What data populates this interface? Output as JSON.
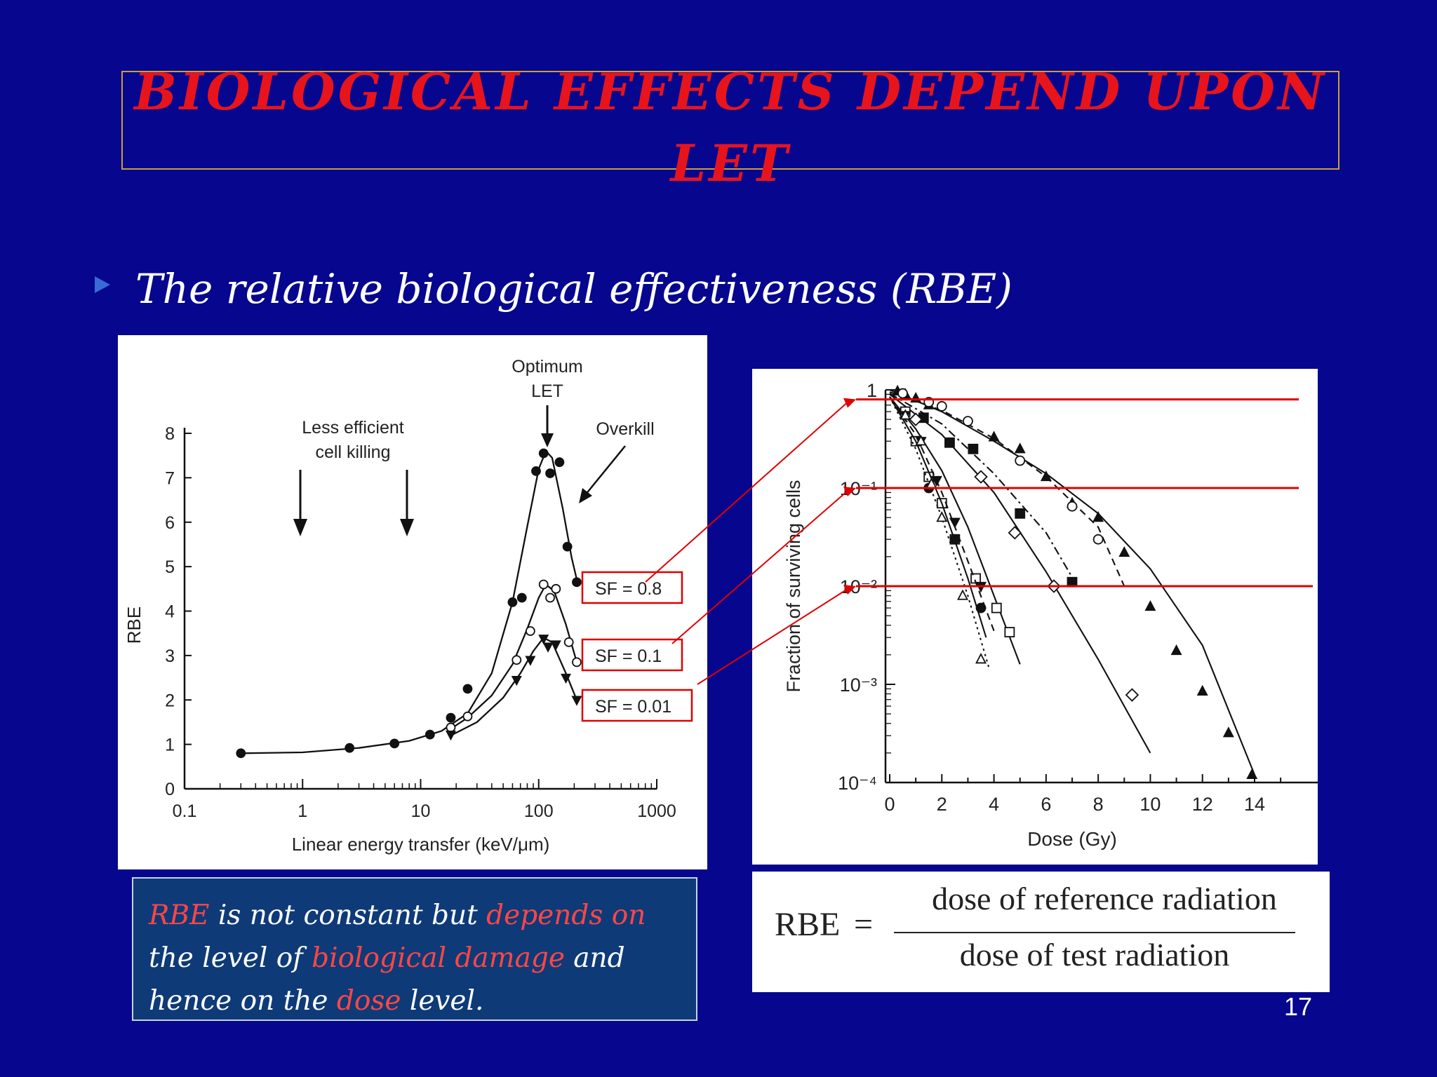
{
  "slide": {
    "title": "BIOLOGICAL EFFECTS DEPEND UPON LET",
    "bullet": "The relative biological effectiveness (RBE)",
    "slide_number": "17",
    "colors": {
      "background": "#06068f",
      "title": "#e8141c",
      "highlight": "#ff4646",
      "guide_lines": "#e00000"
    }
  },
  "note": {
    "segments": [
      {
        "text": "RBE",
        "highlight": true
      },
      {
        "text": " is not constant but ",
        "highlight": false
      },
      {
        "text": "depends on",
        "highlight": true
      },
      {
        "text": " the level of ",
        "highlight": false
      },
      {
        "text": "biological damage",
        "highlight": true
      },
      {
        "text": " and hence on the ",
        "highlight": false
      },
      {
        "text": "dose",
        "highlight": true
      },
      {
        "text": " level.",
        "highlight": false
      }
    ]
  },
  "formula": {
    "lhs": "RBE",
    "equals": "=",
    "numerator": "dose of reference radiation",
    "denominator": "dose of test radiation"
  },
  "chart_data": [
    {
      "type": "line",
      "xlabel": "Linear energy transfer (keV/μm)",
      "ylabel": "RBE",
      "x_scale": "log",
      "xlim": [
        0.1,
        1000
      ],
      "ylim": [
        0,
        8
      ],
      "x_ticks": [
        "0.1",
        "1",
        "10",
        "100",
        "1000"
      ],
      "y_ticks": [
        "0",
        "1",
        "2",
        "3",
        "4",
        "5",
        "6",
        "7",
        "8"
      ],
      "annotations": [
        {
          "text": "Optimum",
          "text2": "LET"
        },
        {
          "text": "Less efficient",
          "text2": "cell killing"
        },
        {
          "text": "Overkill"
        }
      ],
      "series": [
        {
          "name": "SF = 0.8",
          "marker": "filled-circle",
          "curve": [
            [
              0.3,
              0.8
            ],
            [
              1,
              0.82
            ],
            [
              3,
              0.92
            ],
            [
              8,
              1.08
            ],
            [
              15,
              1.3
            ],
            [
              25,
              1.7
            ],
            [
              40,
              2.6
            ],
            [
              60,
              4.2
            ],
            [
              80,
              5.9
            ],
            [
              100,
              7.2
            ],
            [
              115,
              7.6
            ],
            [
              130,
              7.45
            ],
            [
              160,
              6.3
            ],
            [
              190,
              5.2
            ],
            [
              215,
              4.6
            ]
          ],
          "points": [
            [
              0.3,
              0.8
            ],
            [
              2.5,
              0.92
            ],
            [
              6,
              1.02
            ],
            [
              12,
              1.22
            ],
            [
              18,
              1.6
            ],
            [
              25,
              2.25
            ],
            [
              60,
              4.2
            ],
            [
              72,
              4.3
            ],
            [
              95,
              7.15
            ],
            [
              110,
              7.55
            ],
            [
              125,
              7.1
            ],
            [
              150,
              7.35
            ],
            [
              175,
              5.45
            ],
            [
              210,
              4.65
            ]
          ]
        },
        {
          "name": "SF = 0.1",
          "marker": "open-circle",
          "curve": [
            [
              18,
              1.35
            ],
            [
              25,
              1.6
            ],
            [
              40,
              2.1
            ],
            [
              60,
              2.8
            ],
            [
              80,
              3.6
            ],
            [
              100,
              4.3
            ],
            [
              115,
              4.6
            ],
            [
              135,
              4.45
            ],
            [
              170,
              3.7
            ],
            [
              210,
              2.85
            ]
          ],
          "points": [
            [
              18,
              1.38
            ],
            [
              25,
              1.63
            ],
            [
              65,
              2.9
            ],
            [
              85,
              3.55
            ],
            [
              110,
              4.6
            ],
            [
              125,
              4.3
            ],
            [
              140,
              4.5
            ],
            [
              180,
              3.3
            ],
            [
              210,
              2.85
            ]
          ]
        },
        {
          "name": "SF = 0.01",
          "marker": "filled-triangle-down",
          "curve": [
            [
              18,
              1.2
            ],
            [
              30,
              1.5
            ],
            [
              50,
              2.05
            ],
            [
              70,
              2.6
            ],
            [
              90,
              3.1
            ],
            [
              110,
              3.4
            ],
            [
              130,
              3.3
            ],
            [
              170,
              2.6
            ],
            [
              210,
              2.0
            ]
          ],
          "points": [
            [
              18,
              1.22
            ],
            [
              65,
              2.45
            ],
            [
              85,
              2.9
            ],
            [
              110,
              3.38
            ],
            [
              120,
              3.2
            ],
            [
              140,
              3.25
            ],
            [
              170,
              2.5
            ],
            [
              210,
              2.0
            ]
          ]
        }
      ],
      "labels": [
        "SF = 0.8",
        "SF = 0.1",
        "SF = 0.01"
      ]
    },
    {
      "type": "scatter",
      "xlabel": "Dose (Gy)",
      "ylabel": "Fraction of surviving cells",
      "y_scale": "log",
      "xlim": [
        0,
        15
      ],
      "ylim": [
        0.0001,
        1
      ],
      "x_ticks": [
        "0",
        "2",
        "4",
        "6",
        "8",
        "10",
        "12",
        "14"
      ],
      "y_ticks": [
        "1",
        "10⁻¹",
        "10⁻²",
        "10⁻³",
        "10⁻⁴"
      ],
      "reference_lines_sf": [
        0.8,
        0.1,
        0.01
      ],
      "series": [
        {
          "marker": "filled-triangle",
          "style": "solid",
          "curve": [
            [
              0,
              1
            ],
            [
              2,
              0.6
            ],
            [
              4,
              0.3
            ],
            [
              6,
              0.14
            ],
            [
              8,
              0.055
            ],
            [
              10,
              0.015
            ],
            [
              12,
              0.0025
            ],
            [
              14,
              0.00012
            ]
          ],
          "points": [
            [
              0.3,
              0.97
            ],
            [
              0.6,
              0.9
            ],
            [
              1,
              0.82
            ],
            [
              1.5,
              0.7
            ],
            [
              4,
              0.33
            ],
            [
              5,
              0.25
            ],
            [
              6,
              0.13
            ],
            [
              7,
              0.07
            ],
            [
              8,
              0.05
            ],
            [
              9,
              0.022
            ],
            [
              10,
              0.0062
            ],
            [
              11,
              0.0022
            ],
            [
              12,
              0.00085
            ],
            [
              13,
              0.00032
            ],
            [
              13.9,
              0.00012
            ]
          ]
        },
        {
          "marker": "open-circle",
          "style": "dashed",
          "curve": [
            [
              0,
              0.95
            ],
            [
              2,
              0.62
            ],
            [
              4,
              0.32
            ],
            [
              6,
              0.13
            ],
            [
              8,
              0.04
            ],
            [
              9,
              0.01
            ]
          ],
          "points": [
            [
              0.5,
              0.92
            ],
            [
              1.5,
              0.75
            ],
            [
              2,
              0.68
            ],
            [
              3,
              0.48
            ],
            [
              5,
              0.19
            ],
            [
              7,
              0.065
            ],
            [
              8,
              0.03
            ]
          ]
        },
        {
          "marker": "filled-square",
          "style": "dash-dot",
          "curve": [
            [
              0,
              0.92
            ],
            [
              2,
              0.45
            ],
            [
              4,
              0.14
            ],
            [
              6,
              0.035
            ],
            [
              7.2,
              0.01
            ]
          ],
          "points": [
            [
              1.3,
              0.52
            ],
            [
              2.3,
              0.29
            ],
            [
              3.2,
              0.25
            ],
            [
              5,
              0.055
            ],
            [
              7,
              0.011
            ]
          ]
        },
        {
          "marker": "open-diamond",
          "style": "solid",
          "curve": [
            [
              0,
              0.9
            ],
            [
              2,
              0.35
            ],
            [
              4,
              0.09
            ],
            [
              6,
              0.014
            ],
            [
              8,
              0.0018
            ],
            [
              10,
              0.0002
            ]
          ],
          "points": [
            [
              1,
              0.5
            ],
            [
              3.5,
              0.13
            ],
            [
              4.8,
              0.035
            ],
            [
              6.3,
              0.01
            ],
            [
              9.3,
              0.00078
            ]
          ]
        },
        {
          "marker": "open-square",
          "style": "solid",
          "curve": [
            [
              0,
              0.85
            ],
            [
              1,
              0.4
            ],
            [
              2,
              0.15
            ],
            [
              3,
              0.04
            ],
            [
              4,
              0.008
            ],
            [
              5,
              0.0016
            ]
          ],
          "points": [
            [
              0.6,
              0.6
            ],
            [
              1,
              0.3
            ],
            [
              1.5,
              0.13
            ],
            [
              2,
              0.07
            ],
            [
              2.5,
              0.03
            ],
            [
              3.3,
              0.012
            ],
            [
              4.1,
              0.006
            ],
            [
              4.6,
              0.0034
            ]
          ]
        },
        {
          "marker": "filled-triangle-down",
          "style": "dashed",
          "curve": [
            [
              0,
              0.85
            ],
            [
              1,
              0.35
            ],
            [
              2,
              0.09
            ],
            [
              3,
              0.018
            ],
            [
              4,
              0.0035
            ]
          ],
          "points": [
            [
              0.6,
              0.55
            ],
            [
              1.2,
              0.3
            ],
            [
              1.8,
              0.12
            ],
            [
              2.5,
              0.045
            ],
            [
              3.5,
              0.01
            ]
          ]
        },
        {
          "marker": "filled-circle",
          "style": "solid",
          "curve": [
            [
              0,
              0.85
            ],
            [
              1,
              0.3
            ],
            [
              2,
              0.07
            ],
            [
              3,
              0.012
            ],
            [
              3.7,
              0.003
            ]
          ],
          "points": [
            [
              1.5,
              0.1
            ],
            [
              2.5,
              0.03
            ],
            [
              3.5,
              0.006
            ]
          ]
        },
        {
          "marker": "open-triangle",
          "style": "dotted",
          "curve": [
            [
              0,
              0.85
            ],
            [
              1,
              0.25
            ],
            [
              2,
              0.05
            ],
            [
              3,
              0.008
            ],
            [
              3.8,
              0.0015
            ]
          ],
          "points": [
            [
              0.6,
              0.55
            ],
            [
              1.2,
              0.3
            ],
            [
              1.6,
              0.11
            ],
            [
              2,
              0.05
            ],
            [
              2.8,
              0.008
            ],
            [
              3.5,
              0.0018
            ]
          ]
        }
      ]
    }
  ]
}
